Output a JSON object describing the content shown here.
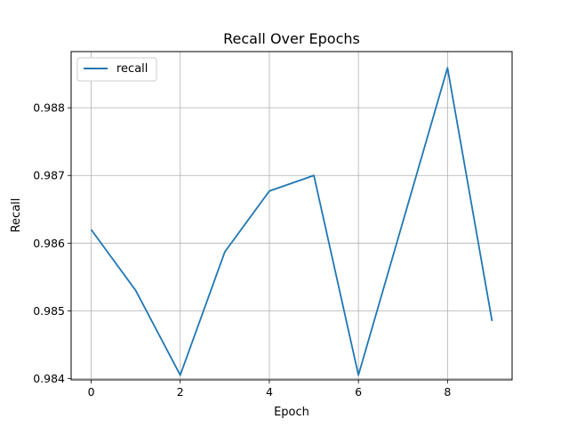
{
  "chart_data": {
    "type": "line",
    "title": "Recall Over Epochs",
    "xlabel": "Epoch",
    "ylabel": "Recall",
    "x": [
      0,
      1,
      2,
      3,
      4,
      5,
      6,
      7,
      8,
      9
    ],
    "series": [
      {
        "name": "recall",
        "color": "#1f77b4",
        "values": [
          0.9862,
          0.9853,
          0.98405,
          0.98587,
          0.98677,
          0.987,
          0.98405,
          0.98632,
          0.98859,
          0.98485
        ]
      }
    ],
    "xlim": [
      -0.45,
      9.45
    ],
    "ylim": [
      0.98398,
      0.98883
    ],
    "xticks": [
      0,
      2,
      4,
      6,
      8
    ],
    "yticks": [
      0.984,
      0.985,
      0.986,
      0.987,
      0.988
    ],
    "xtick_labels": [
      "0",
      "2",
      "4",
      "6",
      "8"
    ],
    "ytick_labels": [
      "0.984",
      "0.985",
      "0.986",
      "0.987",
      "0.988"
    ],
    "grid": true,
    "legend_position": "top-left"
  }
}
